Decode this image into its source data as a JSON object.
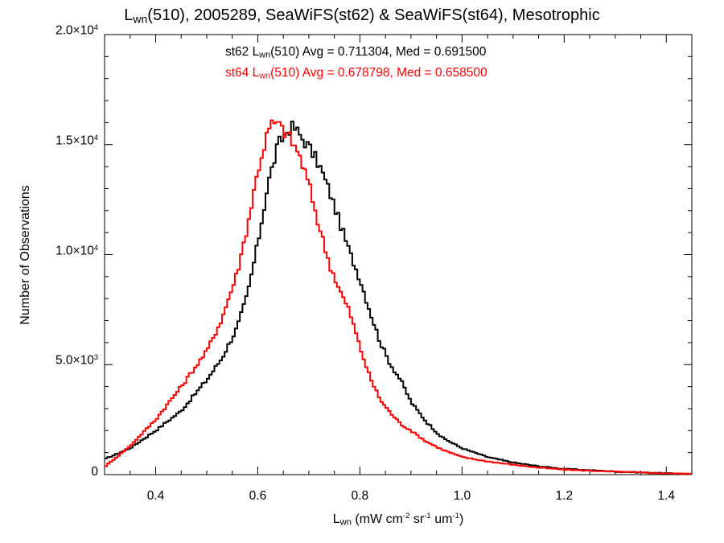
{
  "title": {
    "prefix": "L",
    "sub": "wn",
    "rest": "(510), 2005289, SeaWiFS(st62) & SeaWiFS(st64), Mesotrophic"
  },
  "stats": [
    {
      "pre": "st62 L",
      "sub": "wn",
      "post": "(510) Avg = 0.711304, Med = 0.691500",
      "color": "#000000"
    },
    {
      "pre": "st64 L",
      "sub": "wn",
      "post": "(510) Avg = 0.678798, Med = 0.658500",
      "color": "#ff0000"
    }
  ],
  "ylabel": "Number of Observations",
  "xlabel": {
    "l": "L",
    "lsub": "wn",
    "a": " (mW cm",
    "s1": "-2",
    "b": " sr",
    "s2": "-1",
    "c": " um",
    "s3": "-1",
    "d": ")"
  },
  "yticks": [
    {
      "value": 0,
      "mant": "0",
      "exp": ""
    },
    {
      "value": 5000,
      "mant": "5.0×10",
      "exp": "3"
    },
    {
      "value": 10000,
      "mant": "1.0×10",
      "exp": "4"
    },
    {
      "value": 15000,
      "mant": "1.5×10",
      "exp": "4"
    },
    {
      "value": 20000,
      "mant": "2.0×10",
      "exp": "4"
    }
  ],
  "xticks": [
    "0.4",
    "0.6",
    "0.8",
    "1.0",
    "1.2",
    "1.4"
  ],
  "chart_data": {
    "type": "line",
    "style": "step histogram",
    "xlim": [
      0.3,
      1.45
    ],
    "ylim": [
      0,
      20000
    ],
    "bin_width": 0.005,
    "series": [
      {
        "name": "st62",
        "color": "#000000",
        "points": [
          [
            0.3,
            700
          ],
          [
            0.35,
            1200
          ],
          [
            0.4,
            2000
          ],
          [
            0.45,
            2900
          ],
          [
            0.5,
            4300
          ],
          [
            0.53,
            5300
          ],
          [
            0.56,
            6700
          ],
          [
            0.58,
            8200
          ],
          [
            0.6,
            10500
          ],
          [
            0.62,
            13200
          ],
          [
            0.64,
            15000
          ],
          [
            0.66,
            15700
          ],
          [
            0.67,
            15800
          ],
          [
            0.68,
            15500
          ],
          [
            0.7,
            14900
          ],
          [
            0.72,
            14100
          ],
          [
            0.74,
            12900
          ],
          [
            0.76,
            11500
          ],
          [
            0.78,
            10100
          ],
          [
            0.8,
            8900
          ],
          [
            0.82,
            7400
          ],
          [
            0.84,
            6000
          ],
          [
            0.86,
            5000
          ],
          [
            0.88,
            4300
          ],
          [
            0.9,
            3300
          ],
          [
            0.93,
            2400
          ],
          [
            0.96,
            1700
          ],
          [
            1.0,
            1200
          ],
          [
            1.05,
            800
          ],
          [
            1.1,
            550
          ],
          [
            1.15,
            380
          ],
          [
            1.2,
            260
          ],
          [
            1.3,
            140
          ],
          [
            1.4,
            60
          ],
          [
            1.45,
            30
          ]
        ]
      },
      {
        "name": "st64",
        "color": "#ff0000",
        "points": [
          [
            0.3,
            350
          ],
          [
            0.35,
            1300
          ],
          [
            0.4,
            2500
          ],
          [
            0.45,
            4000
          ],
          [
            0.5,
            5600
          ],
          [
            0.53,
            7100
          ],
          [
            0.56,
            9200
          ],
          [
            0.58,
            11300
          ],
          [
            0.6,
            13800
          ],
          [
            0.62,
            15600
          ],
          [
            0.63,
            16000
          ],
          [
            0.64,
            15900
          ],
          [
            0.66,
            15400
          ],
          [
            0.68,
            14600
          ],
          [
            0.7,
            13200
          ],
          [
            0.72,
            11300
          ],
          [
            0.74,
            9600
          ],
          [
            0.76,
            8400
          ],
          [
            0.78,
            7400
          ],
          [
            0.8,
            5800
          ],
          [
            0.82,
            4400
          ],
          [
            0.84,
            3400
          ],
          [
            0.86,
            2800
          ],
          [
            0.88,
            2300
          ],
          [
            0.9,
            2000
          ],
          [
            0.93,
            1500
          ],
          [
            0.96,
            1150
          ],
          [
            1.0,
            800
          ],
          [
            1.05,
            600
          ],
          [
            1.1,
            450
          ],
          [
            1.15,
            320
          ],
          [
            1.2,
            230
          ],
          [
            1.3,
            130
          ],
          [
            1.4,
            60
          ],
          [
            1.45,
            30
          ]
        ]
      }
    ]
  }
}
